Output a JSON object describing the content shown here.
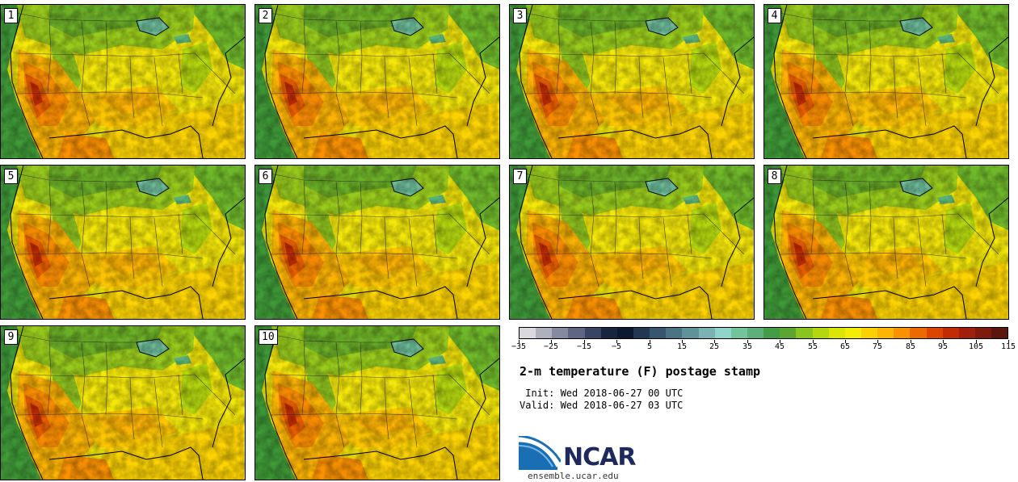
{
  "title": "2-m temperature (F) postage stamp",
  "init_text": " Init: Wed 2018-06-27 00 UTC",
  "valid_text": "Valid: Wed 2018-06-27 03 UTC",
  "panels": [
    {
      "label": "1"
    },
    {
      "label": "2"
    },
    {
      "label": "3"
    },
    {
      "label": "4"
    },
    {
      "label": "5"
    },
    {
      "label": "6"
    },
    {
      "label": "7"
    },
    {
      "label": "8"
    },
    {
      "label": "9"
    },
    {
      "label": "10"
    }
  ],
  "colorbar": {
    "unit": "F",
    "bin_edges_start": -35,
    "bin_width": 5,
    "colors": [
      "#d9d9de",
      "#aeb0bd",
      "#868aa0",
      "#5e6683",
      "#384463",
      "#182540",
      "#0b1a30",
      "#213752",
      "#36566f",
      "#4a7485",
      "#5f929b",
      "#7bb2b3",
      "#8fd5cc",
      "#72c49a",
      "#5bb178",
      "#439c46",
      "#5da531",
      "#89c51f",
      "#b4d80f",
      "#dbe506",
      "#f2ec06",
      "#fcd103",
      "#fdb503",
      "#f99102",
      "#ed6a00",
      "#dc4400",
      "#c22b04",
      "#a01f0c",
      "#7f1a0f",
      "#5b160e"
    ],
    "tick_labels": [
      "−35",
      "−25",
      "−15",
      "−5",
      "5",
      "15",
      "25",
      "35",
      "45",
      "55",
      "65",
      "75",
      "85",
      "95",
      "105",
      "115"
    ]
  },
  "logo": {
    "text": "NCAR",
    "url": "ensemble.ucar.edu"
  }
}
